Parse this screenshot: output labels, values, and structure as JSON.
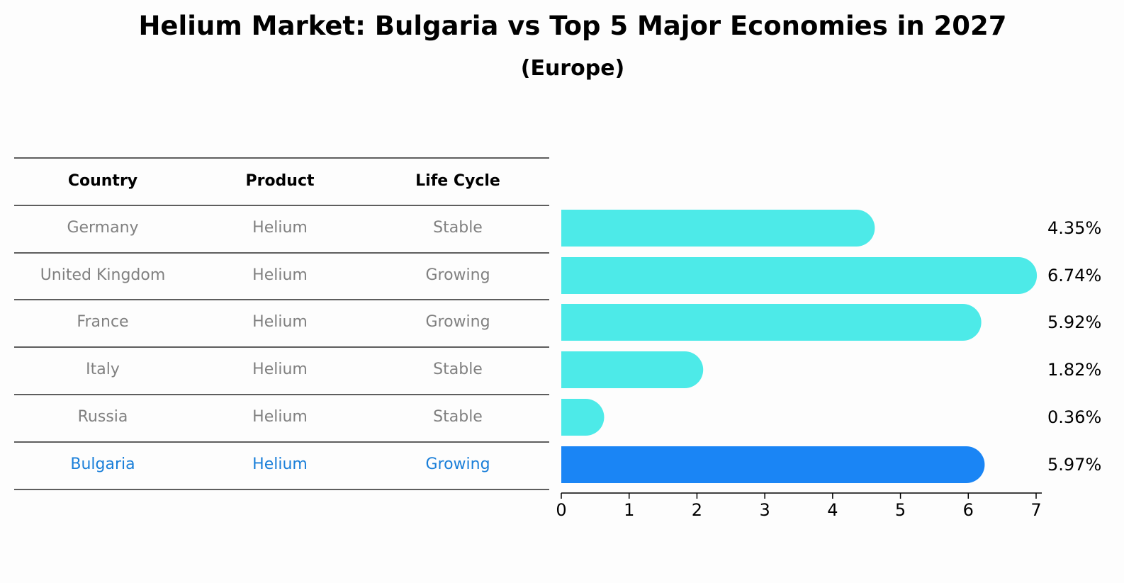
{
  "chart_data": {
    "type": "bar",
    "orientation": "horizontal",
    "title": "Helium Market: Bulgaria vs Top 5 Major Economies in 2027",
    "subtitle": "(Europe)",
    "table": {
      "headers": [
        "Country",
        "Product",
        "Life Cycle"
      ],
      "rows": [
        {
          "country": "Germany",
          "product": "Helium",
          "life_cycle": "Stable"
        },
        {
          "country": "United Kingdom",
          "product": "Helium",
          "life_cycle": "Growing"
        },
        {
          "country": "France",
          "product": "Helium",
          "life_cycle": "Growing"
        },
        {
          "country": "Italy",
          "product": "Helium",
          "life_cycle": "Stable"
        },
        {
          "country": "Russia",
          "product": "Helium",
          "life_cycle": "Stable"
        },
        {
          "country": "Bulgaria",
          "product": "Helium",
          "life_cycle": "Growing"
        }
      ]
    },
    "categories": [
      "Germany",
      "United Kingdom",
      "France",
      "Italy",
      "Russia",
      "Bulgaria"
    ],
    "values": [
      4.35,
      6.74,
      5.92,
      1.82,
      0.36,
      5.97
    ],
    "value_labels": [
      "4.35%",
      "6.74%",
      "5.92%",
      "1.82%",
      "0.36%",
      "5.97%"
    ],
    "highlight": "Bulgaria",
    "xlim": [
      0,
      7
    ],
    "xticks": [
      "0",
      "1",
      "2",
      "3",
      "4",
      "5",
      "6",
      "7"
    ],
    "grid": false,
    "colors": {
      "bar": "#4deae8",
      "highlight": "#1a85f5",
      "row_text": "#808080",
      "highlight_text": "#1a7fd9",
      "rule": "#000000"
    }
  }
}
